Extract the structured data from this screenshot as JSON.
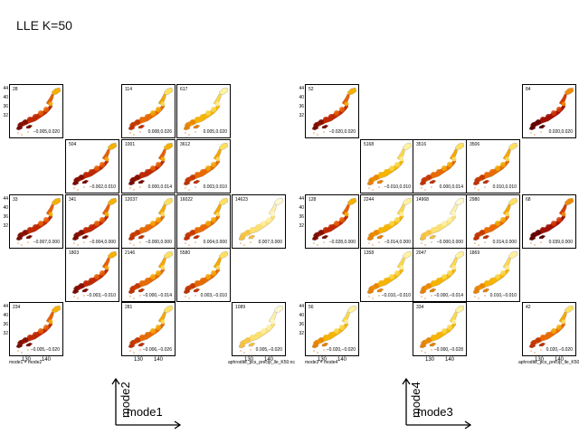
{
  "title": "LLE K=50",
  "left_grid": {
    "panels": [
      {
        "id": "28",
        "range": "−0.005,0.020",
        "r": 0,
        "c": 0,
        "tone": "dark"
      },
      {
        "id": "114",
        "range": "0.008,0.026",
        "r": 0,
        "c": 2,
        "tone": "mid"
      },
      {
        "id": "617",
        "range": "0.005,0.020",
        "r": 0,
        "c": 3,
        "tone": "light"
      },
      {
        "id": "504",
        "range": "−0.002,0.010",
        "r": 1,
        "c": 1,
        "tone": "dark"
      },
      {
        "id": "1001",
        "range": "0.000,0.014",
        "r": 1,
        "c": 2,
        "tone": "dark"
      },
      {
        "id": "3612",
        "range": "0.003,0.010",
        "r": 1,
        "c": 3,
        "tone": "mid"
      },
      {
        "id": "33",
        "range": "−0.007,0.000",
        "r": 2,
        "c": 0,
        "tone": "dark"
      },
      {
        "id": "341",
        "range": "−0.004,0.000",
        "r": 2,
        "c": 1,
        "tone": "dark"
      },
      {
        "id": "12037",
        "range": "−0.000,0.000",
        "r": 2,
        "c": 2,
        "tone": "mid"
      },
      {
        "id": "16022",
        "range": "0.004,0.000",
        "r": 2,
        "c": 3,
        "tone": "mid"
      },
      {
        "id": "14623",
        "range": "0.007,0.000",
        "r": 2,
        "c": 4,
        "tone": "pale"
      },
      {
        "id": "1803",
        "range": "−0.003,−0.010",
        "r": 3,
        "c": 1,
        "tone": "dark"
      },
      {
        "id": "2146",
        "range": "−0.000,−0.014",
        "r": 3,
        "c": 2,
        "tone": "mid"
      },
      {
        "id": "5580",
        "range": "0.003,−0.010",
        "r": 3,
        "c": 3,
        "tone": "mid"
      },
      {
        "id": "234",
        "range": "−0.005,−0.020",
        "r": 4,
        "c": 0,
        "tone": "dark"
      },
      {
        "id": "281",
        "range": "−0.006,−0.026",
        "r": 4,
        "c": 2,
        "tone": "mid"
      },
      {
        "id": "1089",
        "range": "0.005,−0.020",
        "r": 4,
        "c": 4,
        "tone": "pale"
      }
    ],
    "caption_left": "mode1 = mode2",
    "caption_right": "aphrodite_pcs_precip_lle_K50.nc",
    "x_mode": "mode1",
    "y_mode": "mode2"
  },
  "right_grid": {
    "panels": [
      {
        "id": "52",
        "range": "−0.020,0.020",
        "r": 0,
        "c": 0,
        "tone": "dark"
      },
      {
        "id": "84",
        "range": "0.020,0.020",
        "r": 0,
        "c": 4,
        "tone": "darkest"
      },
      {
        "id": "5168",
        "range": "−0.010,0.010",
        "r": 1,
        "c": 1,
        "tone": "light"
      },
      {
        "id": "3516",
        "range": "0.000,0.014",
        "r": 1,
        "c": 2,
        "tone": "mid"
      },
      {
        "id": "3506",
        "range": "0.010,0.010",
        "r": 1,
        "c": 3,
        "tone": "mid"
      },
      {
        "id": "128",
        "range": "−0.028,0.000",
        "r": 2,
        "c": 0,
        "tone": "dark"
      },
      {
        "id": "2244",
        "range": "−0.014,0.000",
        "r": 2,
        "c": 1,
        "tone": "light"
      },
      {
        "id": "14968",
        "range": "−0.000,0.000",
        "r": 2,
        "c": 2,
        "tone": "pale"
      },
      {
        "id": "2980",
        "range": "0.014,0.000",
        "r": 2,
        "c": 3,
        "tone": "mid"
      },
      {
        "id": "68",
        "range": "0.039,0.000",
        "r": 2,
        "c": 4,
        "tone": "darkest"
      },
      {
        "id": "1358",
        "range": "−0.010,−0.010",
        "r": 3,
        "c": 1,
        "tone": "light"
      },
      {
        "id": "2047",
        "range": "−0.000,−0.014",
        "r": 3,
        "c": 2,
        "tone": "light"
      },
      {
        "id": "1869",
        "range": "0.010,−0.010",
        "r": 3,
        "c": 3,
        "tone": "light"
      },
      {
        "id": "56",
        "range": "−0.020,−0.020",
        "r": 4,
        "c": 0,
        "tone": "light"
      },
      {
        "id": "334",
        "range": "−0.000,−0.028",
        "r": 4,
        "c": 2,
        "tone": "light"
      },
      {
        "id": "42",
        "range": "0.020,−0.020",
        "r": 4,
        "c": 4,
        "tone": "mid"
      }
    ],
    "caption_left": "mode3 = mode4",
    "caption_right": "aphrodite_pcs_precip_lle_K50.nc",
    "x_mode": "mode3",
    "y_mode": "mode4"
  },
  "y_ticks": [
    "44",
    "40",
    "36",
    "32",
    "28"
  ],
  "x_ticks": [
    "130",
    "140"
  ],
  "tones": {
    "darkest": [
      "#5a0000",
      "#a01000",
      "#d83a00",
      "#f08a00"
    ],
    "dark": [
      "#7a0a00",
      "#c02800",
      "#e86000",
      "#f6b000"
    ],
    "mid": [
      "#c03000",
      "#e86a00",
      "#f5a800",
      "#fde060"
    ],
    "light": [
      "#e88000",
      "#f6b400",
      "#fcd84a",
      "#fff2a0"
    ],
    "pale": [
      "#f6c040",
      "#fce070",
      "#fff0a8",
      "#fff8d0"
    ]
  }
}
